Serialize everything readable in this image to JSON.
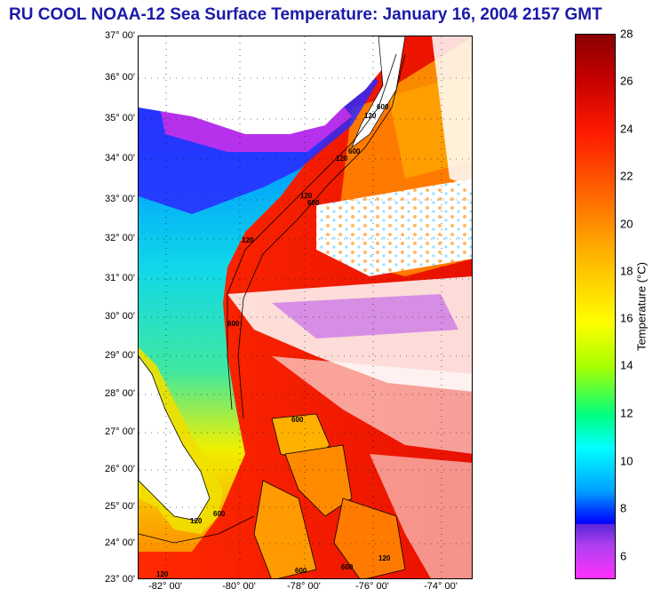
{
  "title": "RU COOL  NOAA-12  Sea Surface Temperature:  January 16, 2004 2157 GMT",
  "latitude_labels": [
    "37° 00'",
    "36° 00'",
    "35° 00'",
    "34° 00'",
    "33° 00'",
    "32° 00'",
    "31° 00'",
    "30° 00'",
    "29° 00'",
    "28° 00'",
    "27° 00'",
    "26° 00'",
    "25° 00'",
    "24° 00'",
    "23° 00'"
  ],
  "longitude_labels": [
    "-82° 00'",
    "-80° 00'",
    "-78° 00'",
    "-76° 00'",
    "-74° 00'"
  ],
  "contour_labels": [
    "120",
    "600",
    "120",
    "600",
    "120",
    "600",
    "120",
    "120",
    "600",
    "600",
    "600",
    "120",
    "600",
    "600",
    "120"
  ],
  "colorbar": {
    "ticks": [
      "28",
      "26",
      "24",
      "22",
      "20",
      "18",
      "16",
      "14",
      "12",
      "10",
      "8",
      "6"
    ],
    "label": "Temperature (°C)",
    "min": 5,
    "max": 28
  },
  "colors": {
    "title": "#1a1aa8",
    "land": "#ffffff",
    "gulf_stream": "#e01a00",
    "shelf_water": "#00b8ff",
    "cold_water": "#d030e8",
    "cloud": "#ffffff"
  }
}
